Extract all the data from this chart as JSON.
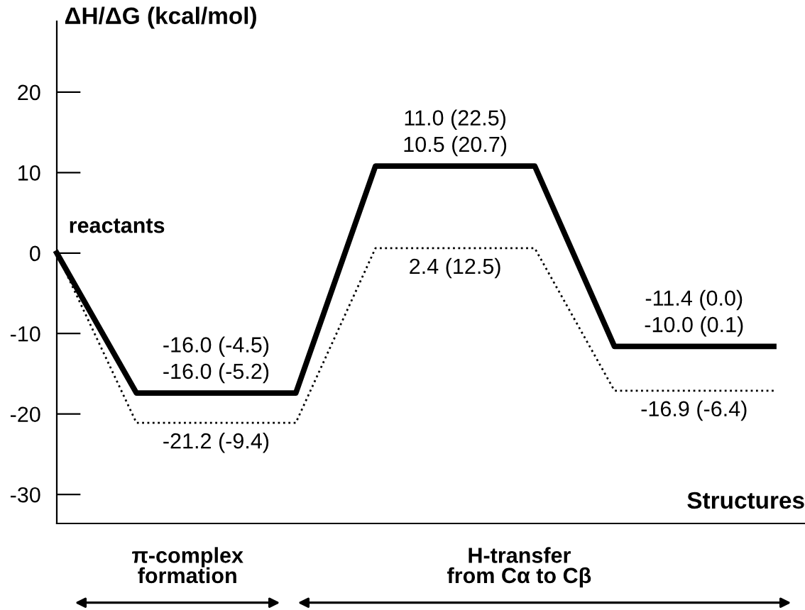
{
  "chart_data": {
    "type": "line",
    "ylabel": "ΔH/ΔG (kcal/mol)",
    "xlabel": "Structures",
    "categories": [
      null,
      null,
      null,
      null,
      null,
      null,
      null,
      null,
      null,
      null
    ],
    "series": [
      {
        "color": "#000000",
        "line_style": "solid",
        "values": [
          0,
          -17.4,
          -17.4,
          -17.4,
          10.8,
          10.8,
          10.8,
          -11.6,
          -11.6,
          -11.6
        ]
      },
      {
        "color": "#000000",
        "line_style": "dotted",
        "values": [
          0,
          -21.1,
          -21.1,
          -21.1,
          0.6,
          0.6,
          0.6,
          -17.1,
          -17.1,
          -17.1
        ]
      }
    ],
    "ylim": [
      -33.6,
      28.8
    ],
    "yticks": [
      -30,
      -20,
      -10,
      0,
      10,
      20
    ],
    "grid": false,
    "marker": "none",
    "annotations": [
      "reactants",
      "π-complex\nformation",
      "H-transfer\nfrom Cα to Cβ",
      "-16.0 (-4.5)\n-16.0 (-5.2)",
      "11.0 (22.5)\n10.5 (20.7)",
      "-11.4 (0.0)\n-10.0 (0.1)",
      "-21.2 (-9.4)",
      "2.4 (12.5)",
      "-16.9 (-6.4)"
    ]
  }
}
